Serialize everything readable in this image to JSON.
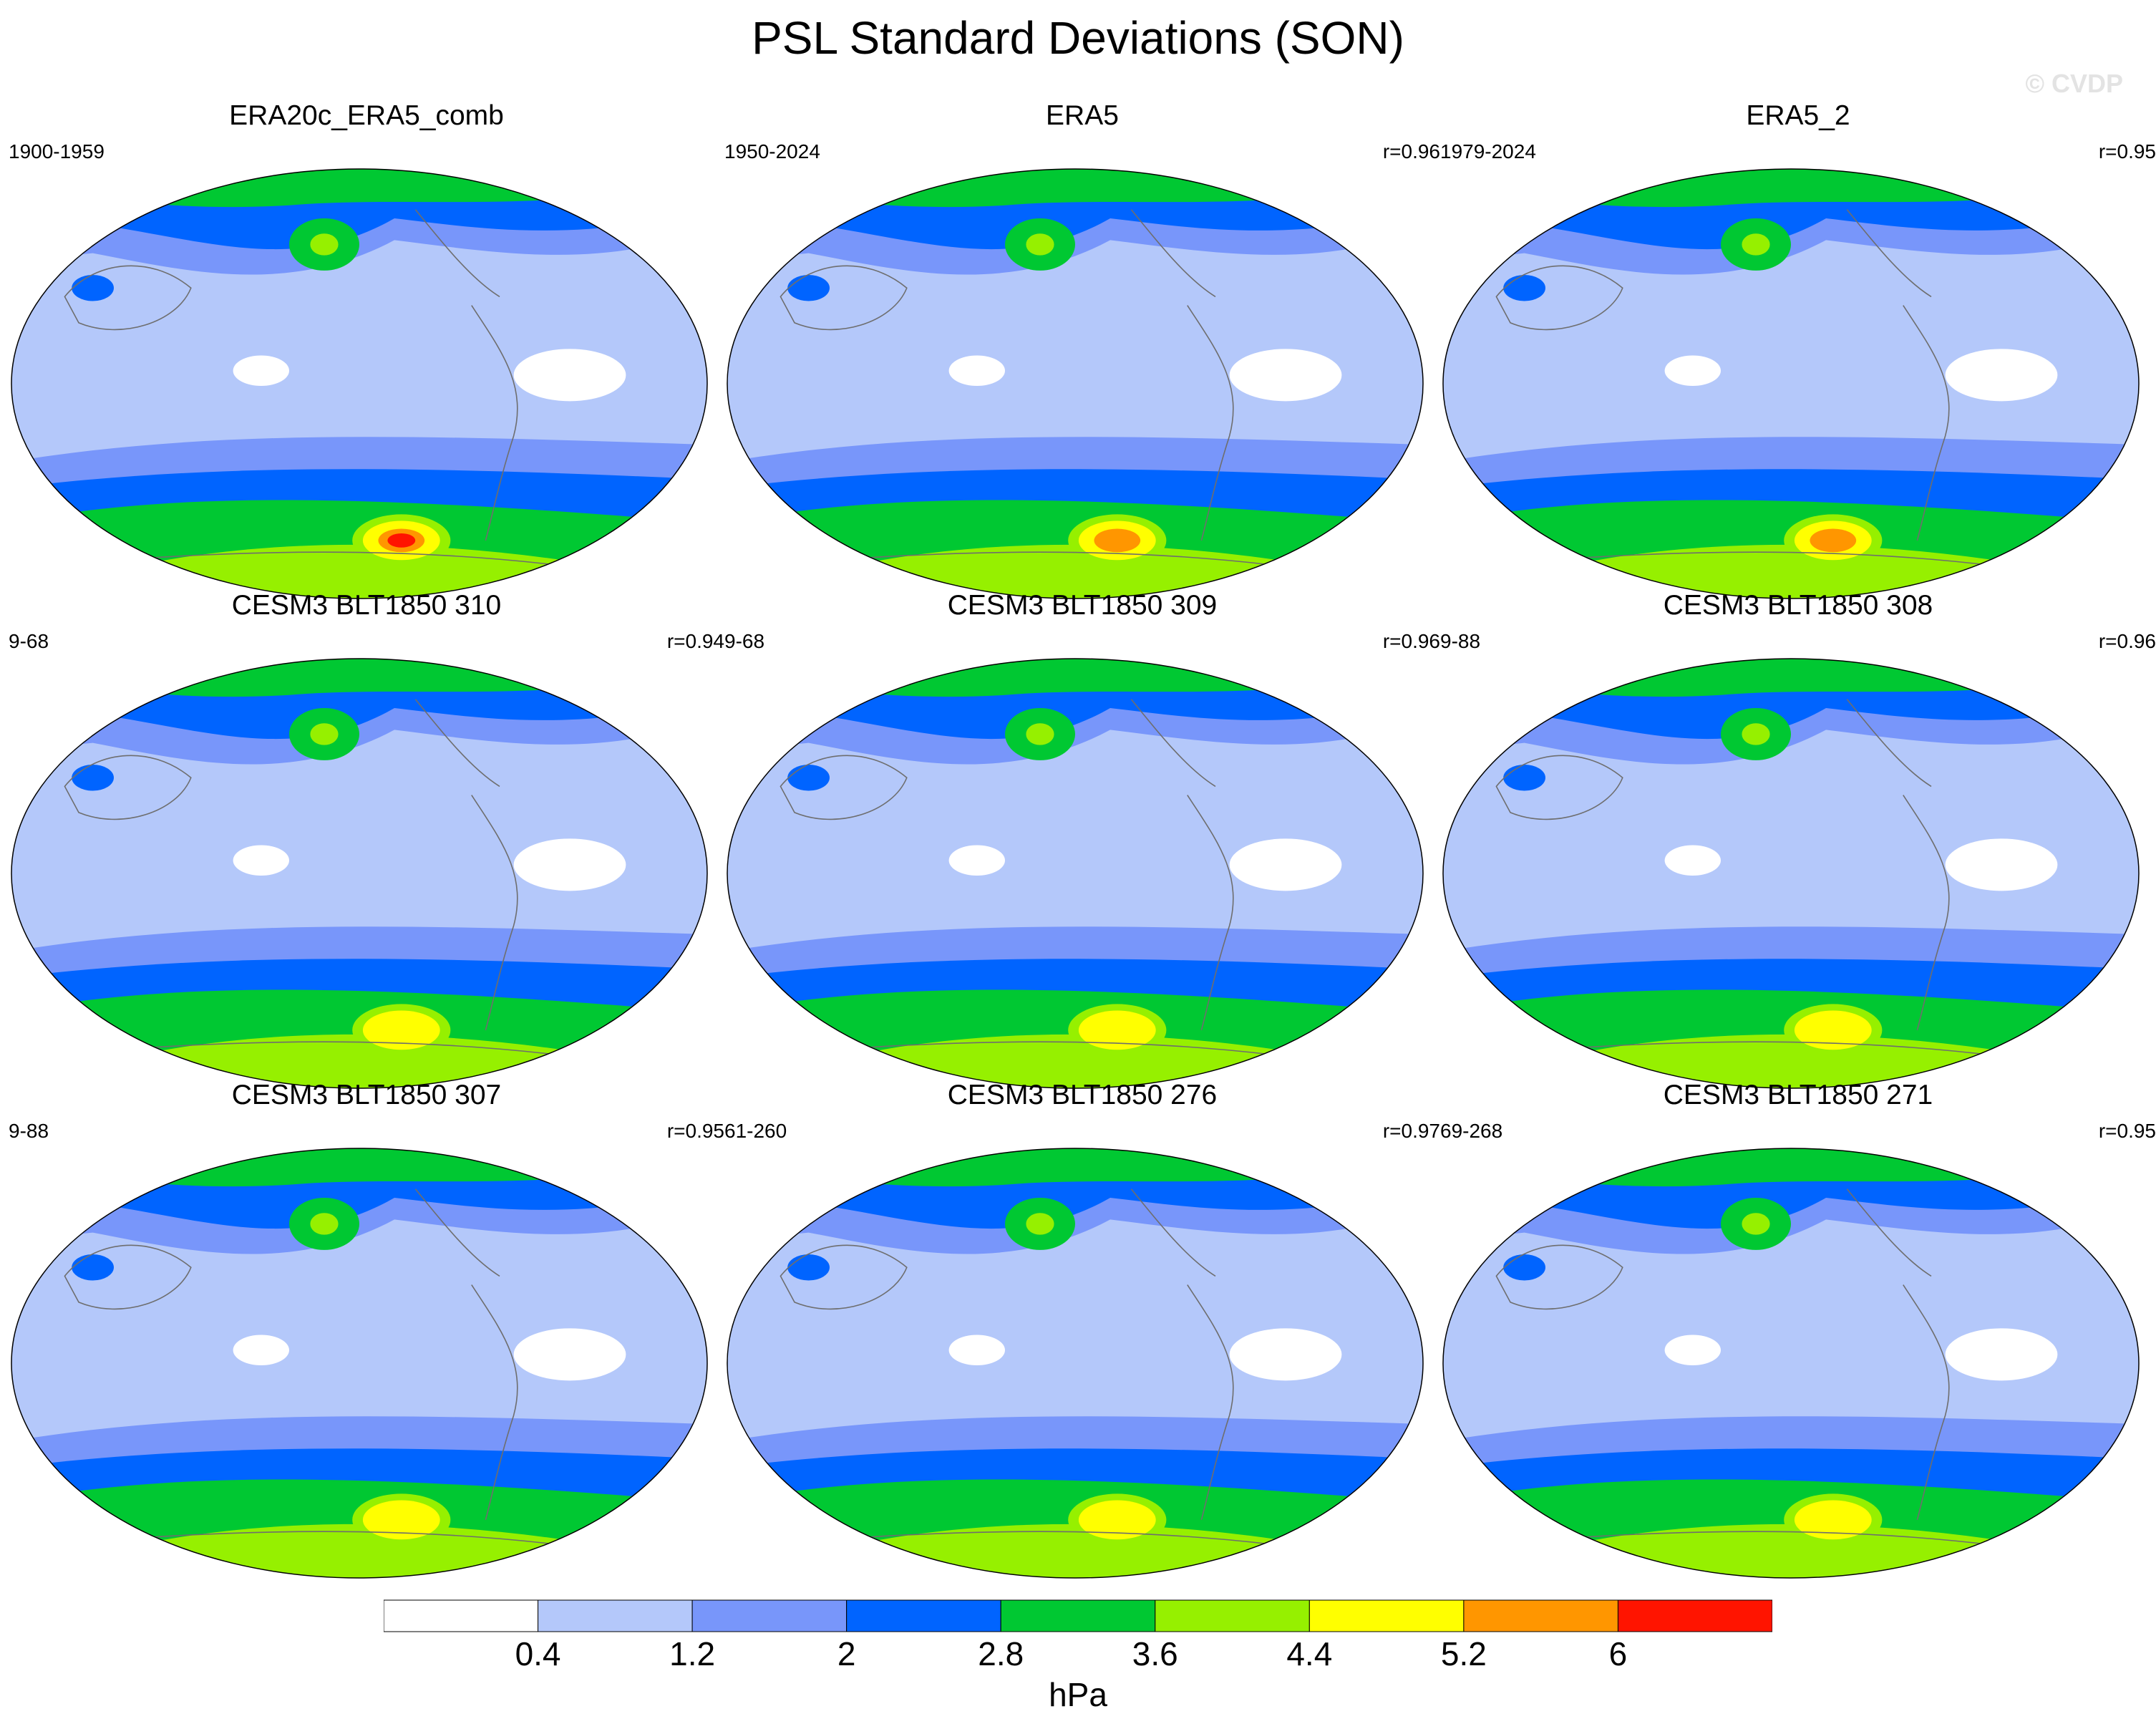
{
  "title": "PSL Standard Deviations (SON)",
  "copyright": "© CVDP",
  "panels": [
    {
      "title": "ERA20c_ERA5_comb",
      "years": "1900-1959",
      "corr": ""
    },
    {
      "title": "ERA5",
      "years": "1950-2024",
      "corr": "r=0.96"
    },
    {
      "title": "ERA5_2",
      "years": "1979-2024",
      "corr": "r=0.95"
    },
    {
      "title": "CESM3 BLT1850 310",
      "years": "9-68",
      "corr": "r=0.94"
    },
    {
      "title": "CESM3 BLT1850 309",
      "years": "9-68",
      "corr": "r=0.96"
    },
    {
      "title": "CESM3 BLT1850 308",
      "years": "9-88",
      "corr": "r=0.96"
    },
    {
      "title": "CESM3 BLT1850 307",
      "years": "9-88",
      "corr": "r=0.95"
    },
    {
      "title": "CESM3 BLT1850 276",
      "years": "61-260",
      "corr": "r=0.97"
    },
    {
      "title": "CESM3 BLT1850 271",
      "years": "69-268",
      "corr": "r=0.95"
    }
  ],
  "colorbar": {
    "units": "hPa",
    "labels": [
      "0.4",
      "1.2",
      "2",
      "2.8",
      "3.6",
      "4.4",
      "5.2",
      "6"
    ],
    "colors": [
      "#ffffff",
      "#b4c8fa",
      "#7896fa",
      "#0064ff",
      "#00c832",
      "#96f000",
      "#ffff00",
      "#ff9600",
      "#ff1400"
    ]
  },
  "chart_data": {
    "type": "heatmap",
    "title": "PSL Standard Deviations (SON)",
    "projection": "Robinson-like global maps, 3x3 panels",
    "units": "hPa",
    "levels": [
      0.4,
      1.2,
      2,
      2.8,
      3.6,
      4.4,
      5.2,
      6
    ],
    "panel_peak_values_hPa": {
      "ERA20c_ERA5_comb": 6.2,
      "ERA5": 5.6,
      "ERA5_2": 5.8,
      "CESM3 BLT1850 310": 5.0,
      "CESM3 BLT1850 309": 5.0,
      "CESM3 BLT1850 308": 5.0,
      "CESM3 BLT1850 307": 4.8,
      "CESM3 BLT1850 276": 5.0,
      "CESM3 BLT1850 271": 5.0
    }
  }
}
